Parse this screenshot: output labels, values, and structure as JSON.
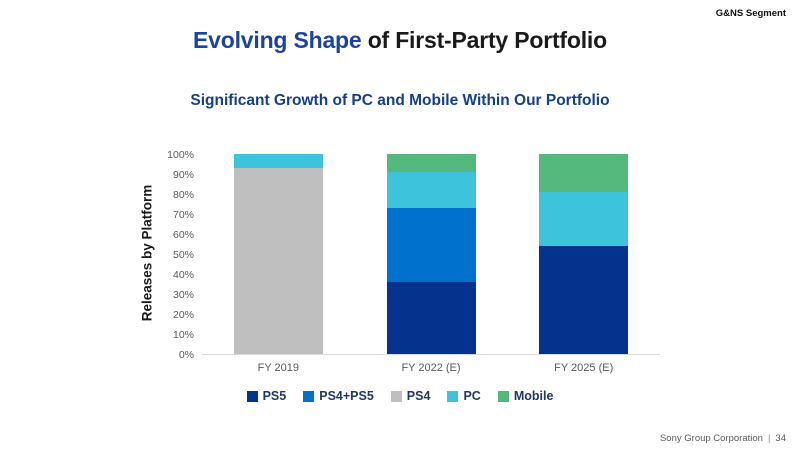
{
  "header": {
    "segment_tag": "G&NS Segment"
  },
  "title": {
    "accent": "Evolving Shape",
    "rest": " of First-Party Portfolio"
  },
  "subtitle": "Significant Growth of PC and Mobile Within Our Portfolio",
  "chart_data": {
    "type": "bar",
    "variant": "stacked-100-percent",
    "title": "Significant Growth of PC and Mobile Within Our Portfolio",
    "ylabel": "Releases by Platform",
    "xlabel": "",
    "ylim": [
      0,
      100
    ],
    "yticks": [
      "0%",
      "10%",
      "20%",
      "30%",
      "40%",
      "50%",
      "60%",
      "70%",
      "80%",
      "90%",
      "100%"
    ],
    "grid": false,
    "legend_position": "bottom-center",
    "categories": [
      "FY 2019",
      "FY 2022 (E)",
      "FY 2025 (E)"
    ],
    "series": [
      {
        "name": "PS5",
        "color": "#04328c",
        "values": [
          0,
          36,
          54
        ]
      },
      {
        "name": "PS4+PS5",
        "color": "#0072ce",
        "values": [
          0,
          37,
          0
        ]
      },
      {
        "name": "PS4",
        "color": "#bfbfbf",
        "values": [
          93,
          0,
          0
        ]
      },
      {
        "name": "PC",
        "color": "#3ec3dc",
        "values": [
          7,
          18,
          27
        ]
      },
      {
        "name": "Mobile",
        "color": "#54b97d",
        "values": [
          0,
          9,
          19
        ]
      }
    ]
  },
  "colors": {
    "title_accent": "#1c449c",
    "subtitle": "#143f8f",
    "axis_text": "#595959",
    "axis_line": "#d9d9d9",
    "legend_text": "#1f3864"
  },
  "footer": {
    "company": "Sony Group Corporation",
    "separator": "|",
    "page": "34"
  }
}
